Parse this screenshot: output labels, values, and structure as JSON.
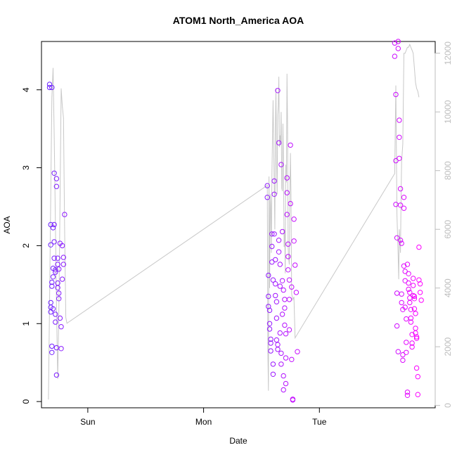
{
  "chart_data": {
    "type": "scatter",
    "title": "ATOM1 North_America AOA",
    "xlabel": "Date",
    "ylabel": "AOA",
    "x_ticks": [
      "Sun",
      "Mon",
      "Tue"
    ],
    "y_left": {
      "ticks": [
        "0",
        "1",
        "2",
        "3",
        "4"
      ],
      "range": [
        -0.08,
        4.62
      ]
    },
    "y_right": {
      "ticks": [
        "0",
        "2000",
        "4000",
        "6000",
        "8000",
        "10000",
        "12000"
      ],
      "range": [
        -80,
        12400
      ]
    },
    "x_range_days": [
      -0.4,
      3.0
    ],
    "grid": false,
    "legend": "none",
    "point_gradient": [
      "#6a22ff",
      "#ff00ff"
    ],
    "line_color": "#c8c8c8",
    "series": [
      {
        "x": [
          -0.33,
          -0.33,
          -0.32,
          -0.32,
          -0.32,
          -0.32,
          -0.32,
          -0.31,
          -0.31,
          -0.31,
          -0.31,
          -0.31,
          -0.3,
          -0.3,
          -0.3,
          -0.3,
          -0.29,
          -0.29,
          -0.29,
          -0.29,
          -0.28,
          -0.28,
          -0.28,
          -0.28,
          -0.27,
          -0.27,
          -0.27,
          -0.27,
          -0.26,
          -0.26,
          -0.26,
          -0.26,
          -0.25,
          -0.25,
          -0.25,
          -0.24,
          -0.24,
          -0.23,
          -0.23,
          -0.22,
          -0.22,
          -0.21,
          -0.21,
          -0.2
        ],
        "y": [
          4.07,
          4.03,
          2.27,
          2.01,
          1.27,
          1.21,
          1.15,
          4.03,
          0.71,
          0.63,
          1.53,
          1.48,
          1.71,
          1.6,
          1.19,
          2.23,
          2.93,
          2.27,
          2.05,
          1.84,
          1.69,
          1.66,
          1.12,
          1.02,
          0.34,
          0.69,
          2.76,
          2.86,
          1.84,
          1.76,
          1.52,
          1.46,
          1.39,
          1.32,
          1.7,
          2.03,
          1.07,
          0.96,
          0.68,
          1.57,
          2.0,
          1.85,
          1.76,
          2.4
        ]
      },
      {
        "x": [
          1.55,
          1.55,
          1.56,
          1.56,
          1.56,
          1.57,
          1.57,
          1.57,
          1.58,
          1.58,
          1.58,
          1.59,
          1.59,
          1.59,
          1.6,
          1.6,
          1.6,
          1.61,
          1.61,
          1.61,
          1.62,
          1.62,
          1.62,
          1.63,
          1.63,
          1.63,
          1.64,
          1.64,
          1.64,
          1.65,
          1.65,
          1.65,
          1.66,
          1.66,
          1.66,
          1.67,
          1.67,
          1.67,
          1.68,
          1.68,
          1.68,
          1.69,
          1.69,
          1.69,
          1.7,
          1.7,
          1.7,
          1.71,
          1.71,
          1.71,
          1.72,
          1.72,
          1.72,
          1.73,
          1.73,
          1.73,
          1.74,
          1.74,
          1.74,
          1.75,
          1.75,
          1.76,
          1.76,
          1.77,
          1.77,
          1.78,
          1.78,
          1.79,
          1.8,
          1.81
        ],
        "y": [
          2.77,
          2.62,
          1.62,
          1.35,
          1.22,
          1.17,
          1.0,
          0.93,
          0.8,
          0.75,
          0.65,
          2.15,
          1.99,
          1.79,
          1.56,
          0.48,
          0.35,
          2.83,
          2.66,
          2.15,
          1.82,
          1.51,
          1.36,
          1.28,
          1.07,
          0.79,
          0.73,
          0.67,
          3.99,
          3.32,
          2.07,
          1.92,
          1.76,
          1.48,
          0.88,
          0.62,
          0.48,
          3.04,
          2.18,
          1.55,
          1.12,
          0.33,
          0.15,
          1.43,
          1.31,
          1.2,
          0.98,
          0.87,
          0.56,
          0.23,
          2.87,
          2.68,
          2.4,
          2.02,
          1.86,
          1.69,
          1.56,
          1.31,
          0.92,
          3.29,
          2.54,
          1.47,
          0.54,
          0.03,
          0.02,
          2.34,
          2.06,
          1.75,
          1.4,
          0.64
        ]
      },
      {
        "x": [
          2.65,
          2.65,
          2.66,
          2.66,
          2.66,
          2.67,
          2.67,
          2.67,
          2.68,
          2.68,
          2.68,
          2.69,
          2.69,
          2.69,
          2.7,
          2.7,
          2.7,
          2.71,
          2.71,
          2.71,
          2.72,
          2.72,
          2.72,
          2.73,
          2.73,
          2.73,
          2.74,
          2.74,
          2.74,
          2.75,
          2.75,
          2.75,
          2.76,
          2.76,
          2.76,
          2.77,
          2.77,
          2.77,
          2.78,
          2.78,
          2.78,
          2.79,
          2.79,
          2.79,
          2.8,
          2.8,
          2.8,
          2.81,
          2.81,
          2.81,
          2.82,
          2.82,
          2.82,
          2.83,
          2.83,
          2.83,
          2.84,
          2.84,
          2.84,
          2.85,
          2.85,
          2.86,
          2.86,
          2.87,
          2.87,
          2.88
        ],
        "y": [
          4.6,
          4.43,
          3.94,
          3.09,
          2.53,
          2.1,
          1.39,
          0.97,
          0.64,
          4.62,
          4.53,
          3.61,
          3.39,
          3.12,
          2.73,
          2.52,
          2.07,
          2.03,
          1.38,
          1.27,
          1.18,
          0.6,
          0.53,
          2.62,
          2.48,
          1.74,
          1.67,
          1.55,
          1.21,
          1.06,
          0.76,
          0.63,
          0.12,
          0.08,
          1.76,
          1.64,
          1.52,
          1.44,
          1.4,
          1.33,
          1.27,
          1.18,
          1.07,
          1.02,
          0.86,
          0.75,
          0.7,
          1.58,
          1.49,
          1.36,
          1.35,
          1.32,
          1.19,
          1.13,
          0.94,
          0.88,
          0.83,
          0.81,
          0.43,
          0.32,
          0.09,
          1.98,
          1.56,
          1.51,
          1.4,
          1.3
        ]
      }
    ],
    "line_series": {
      "axis": "right",
      "x": [
        -0.34,
        -0.33,
        -0.32,
        -0.31,
        -0.3,
        -0.29,
        -0.28,
        -0.27,
        -0.26,
        -0.25,
        -0.24,
        -0.23,
        -0.22,
        -0.21,
        -0.2,
        -0.19,
        -0.18,
        1.55,
        1.555,
        1.56,
        1.565,
        1.57,
        1.575,
        1.58,
        1.585,
        1.59,
        1.6,
        1.605,
        1.61,
        1.615,
        1.62,
        1.625,
        1.63,
        1.635,
        1.64,
        1.645,
        1.65,
        1.655,
        1.66,
        1.665,
        1.67,
        1.675,
        1.68,
        1.685,
        1.69,
        1.695,
        1.7,
        1.705,
        1.71,
        1.715,
        1.72,
        1.725,
        1.73,
        1.735,
        1.74,
        1.745,
        1.75,
        1.755,
        1.76,
        1.77,
        1.78,
        1.79,
        2.65,
        2.66,
        2.67,
        2.68,
        2.685,
        2.69,
        2.7,
        2.705,
        2.71,
        2.72,
        2.73,
        2.74,
        2.75,
        2.76,
        2.77,
        2.78,
        2.79,
        2.8,
        2.81,
        2.82,
        2.83,
        2.84,
        2.85,
        2.86
      ],
      "y": [
        200,
        3500,
        7200,
        10500,
        11500,
        9200,
        6200,
        3300,
        900,
        3200,
        7000,
        10800,
        10200,
        9800,
        6000,
        3000,
        2800,
        7500,
        1800,
        500,
        7800,
        4000,
        7200,
        6800,
        5200,
        7900,
        10400,
        9000,
        7500,
        6000,
        9400,
        10800,
        8200,
        7200,
        9900,
        10200,
        11200,
        8800,
        9200,
        8900,
        10000,
        7400,
        7300,
        9600,
        8400,
        5400,
        6000,
        4500,
        8200,
        7600,
        11300,
        9600,
        5400,
        5000,
        4800,
        7200,
        8600,
        7200,
        3800,
        3600,
        3700,
        2300,
        7900,
        10900,
        6500,
        5100,
        4300,
        6000,
        5200,
        7000,
        8300,
        8900,
        12000,
        12000,
        12100,
        12200,
        12200,
        12300,
        12200,
        12100,
        12000,
        11500,
        11000,
        10800,
        10700,
        10500
      ]
    }
  }
}
